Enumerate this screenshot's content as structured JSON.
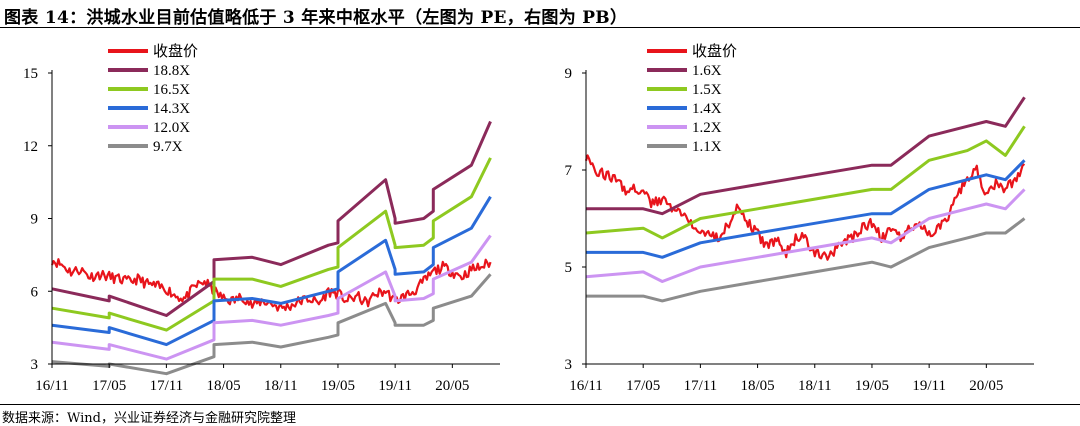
{
  "title": "图表 14：洪城水业目前估值略低于 3 年来中枢水平（左图为 PE，右图为 PB）",
  "source": "数据来源：Wind，兴业证券经济与金融研究院整理",
  "colors": {
    "price": "#e8141b",
    "b1": "#8b2a5a",
    "b2": "#8ec920",
    "b3": "#2a6bd8",
    "b4": "#cc94f2",
    "b5": "#8c8c8c",
    "axis": "#000000"
  },
  "chart_data": [
    {
      "type": "line",
      "title": "",
      "xlabel": "",
      "ylabel": "",
      "ylim": [
        3,
        15
      ],
      "yticks": [
        3,
        6,
        9,
        12,
        15
      ],
      "xlim": [
        0,
        47
      ],
      "xtick_labels": [
        "16/11",
        "17/05",
        "17/11",
        "18/05",
        "18/11",
        "19/05",
        "19/11",
        "20/05"
      ],
      "xtick_positions": [
        0,
        6,
        12,
        18,
        24,
        30,
        36,
        42
      ],
      "legend_position": "top-left",
      "series": [
        {
          "name": "收盘价",
          "color_key": "price",
          "noisy": true,
          "x": [
            0,
            1,
            2,
            3,
            4,
            5,
            6,
            7,
            8,
            9,
            10,
            11,
            12,
            13,
            14,
            15,
            16,
            17,
            18,
            19,
            20,
            21,
            22,
            23,
            24,
            25,
            26,
            27,
            28,
            29,
            30,
            31,
            32,
            33,
            34,
            35,
            36,
            37,
            38,
            39,
            40,
            41,
            42,
            43,
            44,
            45,
            46
          ],
          "values": [
            7.3,
            7.1,
            6.8,
            6.9,
            6.6,
            6.7,
            6.6,
            6.5,
            6.4,
            6.5,
            6.3,
            6.2,
            6.1,
            5.8,
            5.7,
            6.2,
            6.4,
            6.0,
            5.7,
            5.6,
            5.8,
            5.4,
            5.6,
            5.5,
            5.3,
            5.4,
            5.6,
            5.7,
            5.5,
            6.0,
            5.9,
            5.6,
            5.8,
            5.5,
            5.9,
            6.0,
            5.6,
            5.8,
            6.0,
            6.4,
            6.8,
            7.0,
            6.8,
            6.6,
            6.9,
            7.0,
            7.2
          ]
        },
        {
          "name": "18.8X",
          "color_key": "b1",
          "x": [
            0,
            6,
            6,
            12,
            17,
            17,
            21,
            24,
            29,
            30,
            30,
            35,
            36,
            36,
            39,
            40,
            40,
            44,
            46
          ],
          "values": [
            6.1,
            5.6,
            5.8,
            5.0,
            6.4,
            7.3,
            7.4,
            7.1,
            7.9,
            8.0,
            8.9,
            10.6,
            9.0,
            8.8,
            9.0,
            9.3,
            10.2,
            11.2,
            13.0
          ]
        },
        {
          "name": "16.5X",
          "color_key": "b2",
          "x": [
            0,
            6,
            6,
            12,
            17,
            17,
            21,
            24,
            29,
            30,
            30,
            35,
            36,
            36,
            39,
            40,
            40,
            44,
            46
          ],
          "values": [
            5.3,
            4.9,
            5.1,
            4.4,
            5.6,
            6.5,
            6.5,
            6.2,
            6.9,
            7.0,
            7.8,
            9.3,
            7.9,
            7.8,
            7.9,
            8.2,
            8.9,
            9.9,
            11.5
          ]
        },
        {
          "name": "14.3X",
          "color_key": "b3",
          "x": [
            0,
            6,
            6,
            12,
            17,
            17,
            21,
            24,
            29,
            30,
            30,
            35,
            36,
            36,
            39,
            40,
            40,
            44,
            46
          ],
          "values": [
            4.6,
            4.3,
            4.5,
            3.8,
            4.8,
            5.6,
            5.7,
            5.5,
            6.0,
            6.1,
            6.8,
            8.1,
            6.9,
            6.7,
            6.8,
            7.1,
            7.8,
            8.6,
            9.9
          ]
        },
        {
          "name": "12.0X",
          "color_key": "b4",
          "x": [
            0,
            6,
            6,
            12,
            17,
            17,
            21,
            24,
            29,
            30,
            30,
            35,
            36,
            36,
            39,
            40,
            40,
            44,
            46
          ],
          "values": [
            3.9,
            3.6,
            3.8,
            3.2,
            4.0,
            4.7,
            4.8,
            4.6,
            5.0,
            5.1,
            5.7,
            6.8,
            5.8,
            5.6,
            5.7,
            5.9,
            6.5,
            7.2,
            8.3
          ]
        },
        {
          "name": "9.7X",
          "color_key": "b5",
          "x": [
            0,
            6,
            6,
            12,
            17,
            17,
            21,
            24,
            29,
            30,
            30,
            35,
            36,
            36,
            39,
            40,
            40,
            44,
            46
          ],
          "values": [
            3.1,
            2.9,
            3.0,
            2.6,
            3.3,
            3.8,
            3.9,
            3.7,
            4.1,
            4.2,
            4.7,
            5.5,
            4.7,
            4.6,
            4.6,
            4.8,
            5.3,
            5.8,
            6.7
          ]
        }
      ]
    },
    {
      "type": "line",
      "title": "",
      "xlabel": "",
      "ylabel": "",
      "ylim": [
        3,
        9
      ],
      "yticks": [
        3,
        5,
        7,
        9
      ],
      "xlim": [
        0,
        47
      ],
      "xtick_labels": [
        "16/11",
        "17/05",
        "17/11",
        "18/05",
        "18/11",
        "19/05",
        "19/11",
        "20/05"
      ],
      "xtick_positions": [
        0,
        6,
        12,
        18,
        24,
        30,
        36,
        42
      ],
      "legend_position": "top-left",
      "series": [
        {
          "name": "收盘价",
          "color_key": "price",
          "noisy": true,
          "x": [
            0,
            1,
            2,
            3,
            4,
            5,
            6,
            7,
            8,
            9,
            10,
            11,
            12,
            13,
            14,
            15,
            16,
            17,
            18,
            19,
            20,
            21,
            22,
            23,
            24,
            25,
            26,
            27,
            28,
            29,
            30,
            31,
            32,
            33,
            34,
            35,
            36,
            37,
            38,
            39,
            40,
            41,
            42,
            43,
            44,
            45,
            46
          ],
          "values": [
            7.3,
            7.0,
            6.9,
            6.8,
            6.6,
            6.6,
            6.5,
            6.3,
            6.4,
            6.2,
            6.1,
            5.9,
            5.8,
            5.7,
            5.6,
            5.9,
            6.3,
            5.9,
            5.7,
            5.4,
            5.6,
            5.3,
            5.6,
            5.6,
            5.3,
            5.2,
            5.3,
            5.5,
            5.6,
            5.8,
            5.9,
            5.6,
            5.8,
            5.6,
            5.8,
            5.9,
            5.7,
            5.8,
            6.0,
            6.5,
            6.8,
            7.0,
            6.5,
            6.7,
            6.6,
            6.8,
            7.1
          ]
        },
        {
          "name": "1.6X",
          "color_key": "b1",
          "x": [
            0,
            6,
            8,
            12,
            18,
            24,
            30,
            32,
            36,
            40,
            42,
            44,
            46
          ],
          "values": [
            6.2,
            6.2,
            6.1,
            6.5,
            6.7,
            6.9,
            7.1,
            7.1,
            7.7,
            7.9,
            8.0,
            7.9,
            8.5
          ]
        },
        {
          "name": "1.5X",
          "color_key": "b2",
          "x": [
            0,
            6,
            8,
            12,
            18,
            24,
            30,
            32,
            36,
            40,
            42,
            44,
            46
          ],
          "values": [
            5.7,
            5.8,
            5.6,
            6.0,
            6.2,
            6.4,
            6.6,
            6.6,
            7.2,
            7.4,
            7.6,
            7.3,
            7.9
          ]
        },
        {
          "name": "1.4X",
          "color_key": "b3",
          "x": [
            0,
            6,
            8,
            12,
            18,
            24,
            30,
            32,
            36,
            40,
            42,
            44,
            46
          ],
          "values": [
            5.3,
            5.3,
            5.2,
            5.5,
            5.7,
            5.9,
            6.1,
            6.1,
            6.6,
            6.8,
            6.9,
            6.8,
            7.2
          ]
        },
        {
          "name": "1.2X",
          "color_key": "b4",
          "x": [
            0,
            6,
            8,
            12,
            18,
            24,
            30,
            32,
            36,
            40,
            42,
            44,
            46
          ],
          "values": [
            4.8,
            4.9,
            4.7,
            5.0,
            5.2,
            5.4,
            5.6,
            5.5,
            6.0,
            6.2,
            6.3,
            6.2,
            6.6
          ]
        },
        {
          "name": "1.1X",
          "color_key": "b5",
          "x": [
            0,
            6,
            8,
            12,
            18,
            24,
            30,
            32,
            36,
            40,
            42,
            44,
            46
          ],
          "values": [
            4.4,
            4.4,
            4.3,
            4.5,
            4.7,
            4.9,
            5.1,
            5.0,
            5.4,
            5.6,
            5.7,
            5.7,
            6.0
          ]
        }
      ]
    }
  ]
}
